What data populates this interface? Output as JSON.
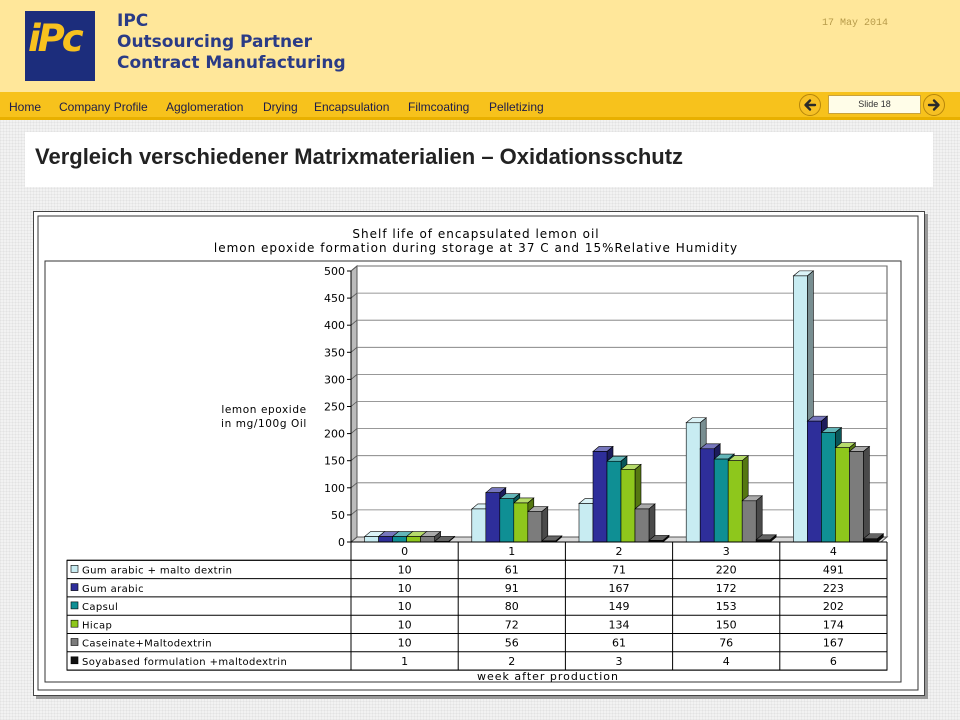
{
  "header": {
    "logo_text": "iPc",
    "company_lines": [
      "IPC",
      "Outsourcing Partner",
      "Contract Manufacturing"
    ],
    "date": "17 May 2014"
  },
  "nav": {
    "items": [
      "Home",
      "Company Profile",
      "Agglomeration",
      "Drying",
      "Encapsulation",
      "Filmcoating",
      "Pelletizing"
    ],
    "slide_label": "Slide 18"
  },
  "slide": {
    "title": "Vergleich verschiedener Matrixmaterialien – Oxidationsschutz"
  },
  "colors": {
    "accent": "#f7c21c",
    "header_bg": "#ffe79a",
    "brand_blue": "#1c2d7c"
  },
  "chart_data": {
    "type": "bar",
    "title": "Shelf life of encapsulated lemon oil",
    "subtitle": "lemon epoxide formation during storage at 37 C and 15%Relative Humidity",
    "ylabel": "lemon epoxide in mg/100g Oil",
    "xlabel": "week after production",
    "categories": [
      "0",
      "1",
      "2",
      "3",
      "4"
    ],
    "ylim": [
      0,
      500
    ],
    "yticks": [
      0,
      50,
      100,
      150,
      200,
      250,
      300,
      350,
      400,
      450,
      500
    ],
    "grid": true,
    "legend": "table-below",
    "series": [
      {
        "name": "Gum arabic + malto dextrin",
        "values": [
          10,
          61,
          71,
          220,
          491
        ],
        "labels": [
          "10",
          "61",
          "71",
          "220",
          "491"
        ],
        "color": "#c8ecf2"
      },
      {
        "name": "Gum arabic",
        "values": [
          10,
          91,
          167,
          172,
          223
        ],
        "labels": [
          "10",
          "91",
          "167",
          "172",
          "223"
        ],
        "color": "#2e2e9a"
      },
      {
        "name": "Capsul",
        "values": [
          10,
          80,
          149,
          153,
          202
        ],
        "labels": [
          "10",
          "80",
          "149",
          "153",
          "202"
        ],
        "color": "#0f8f94"
      },
      {
        "name": "Hicap",
        "values": [
          10,
          72,
          134,
          150,
          174
        ],
        "labels": [
          "10",
          "72",
          "134",
          "150",
          "174"
        ],
        "color": "#8ec71c"
      },
      {
        "name": "Caseinate+Maltodextrin",
        "values": [
          10,
          56,
          61,
          76,
          167
        ],
        "labels": [
          "10",
          "56",
          "61",
          "76",
          "167"
        ],
        "color": "#7c7c7c"
      },
      {
        "name": "Soyabased formulation +maltodextrin",
        "values": [
          1,
          2,
          3,
          4,
          6
        ],
        "labels": [
          "1",
          "2",
          "3",
          "4",
          "6"
        ],
        "color": "#111111"
      }
    ]
  }
}
